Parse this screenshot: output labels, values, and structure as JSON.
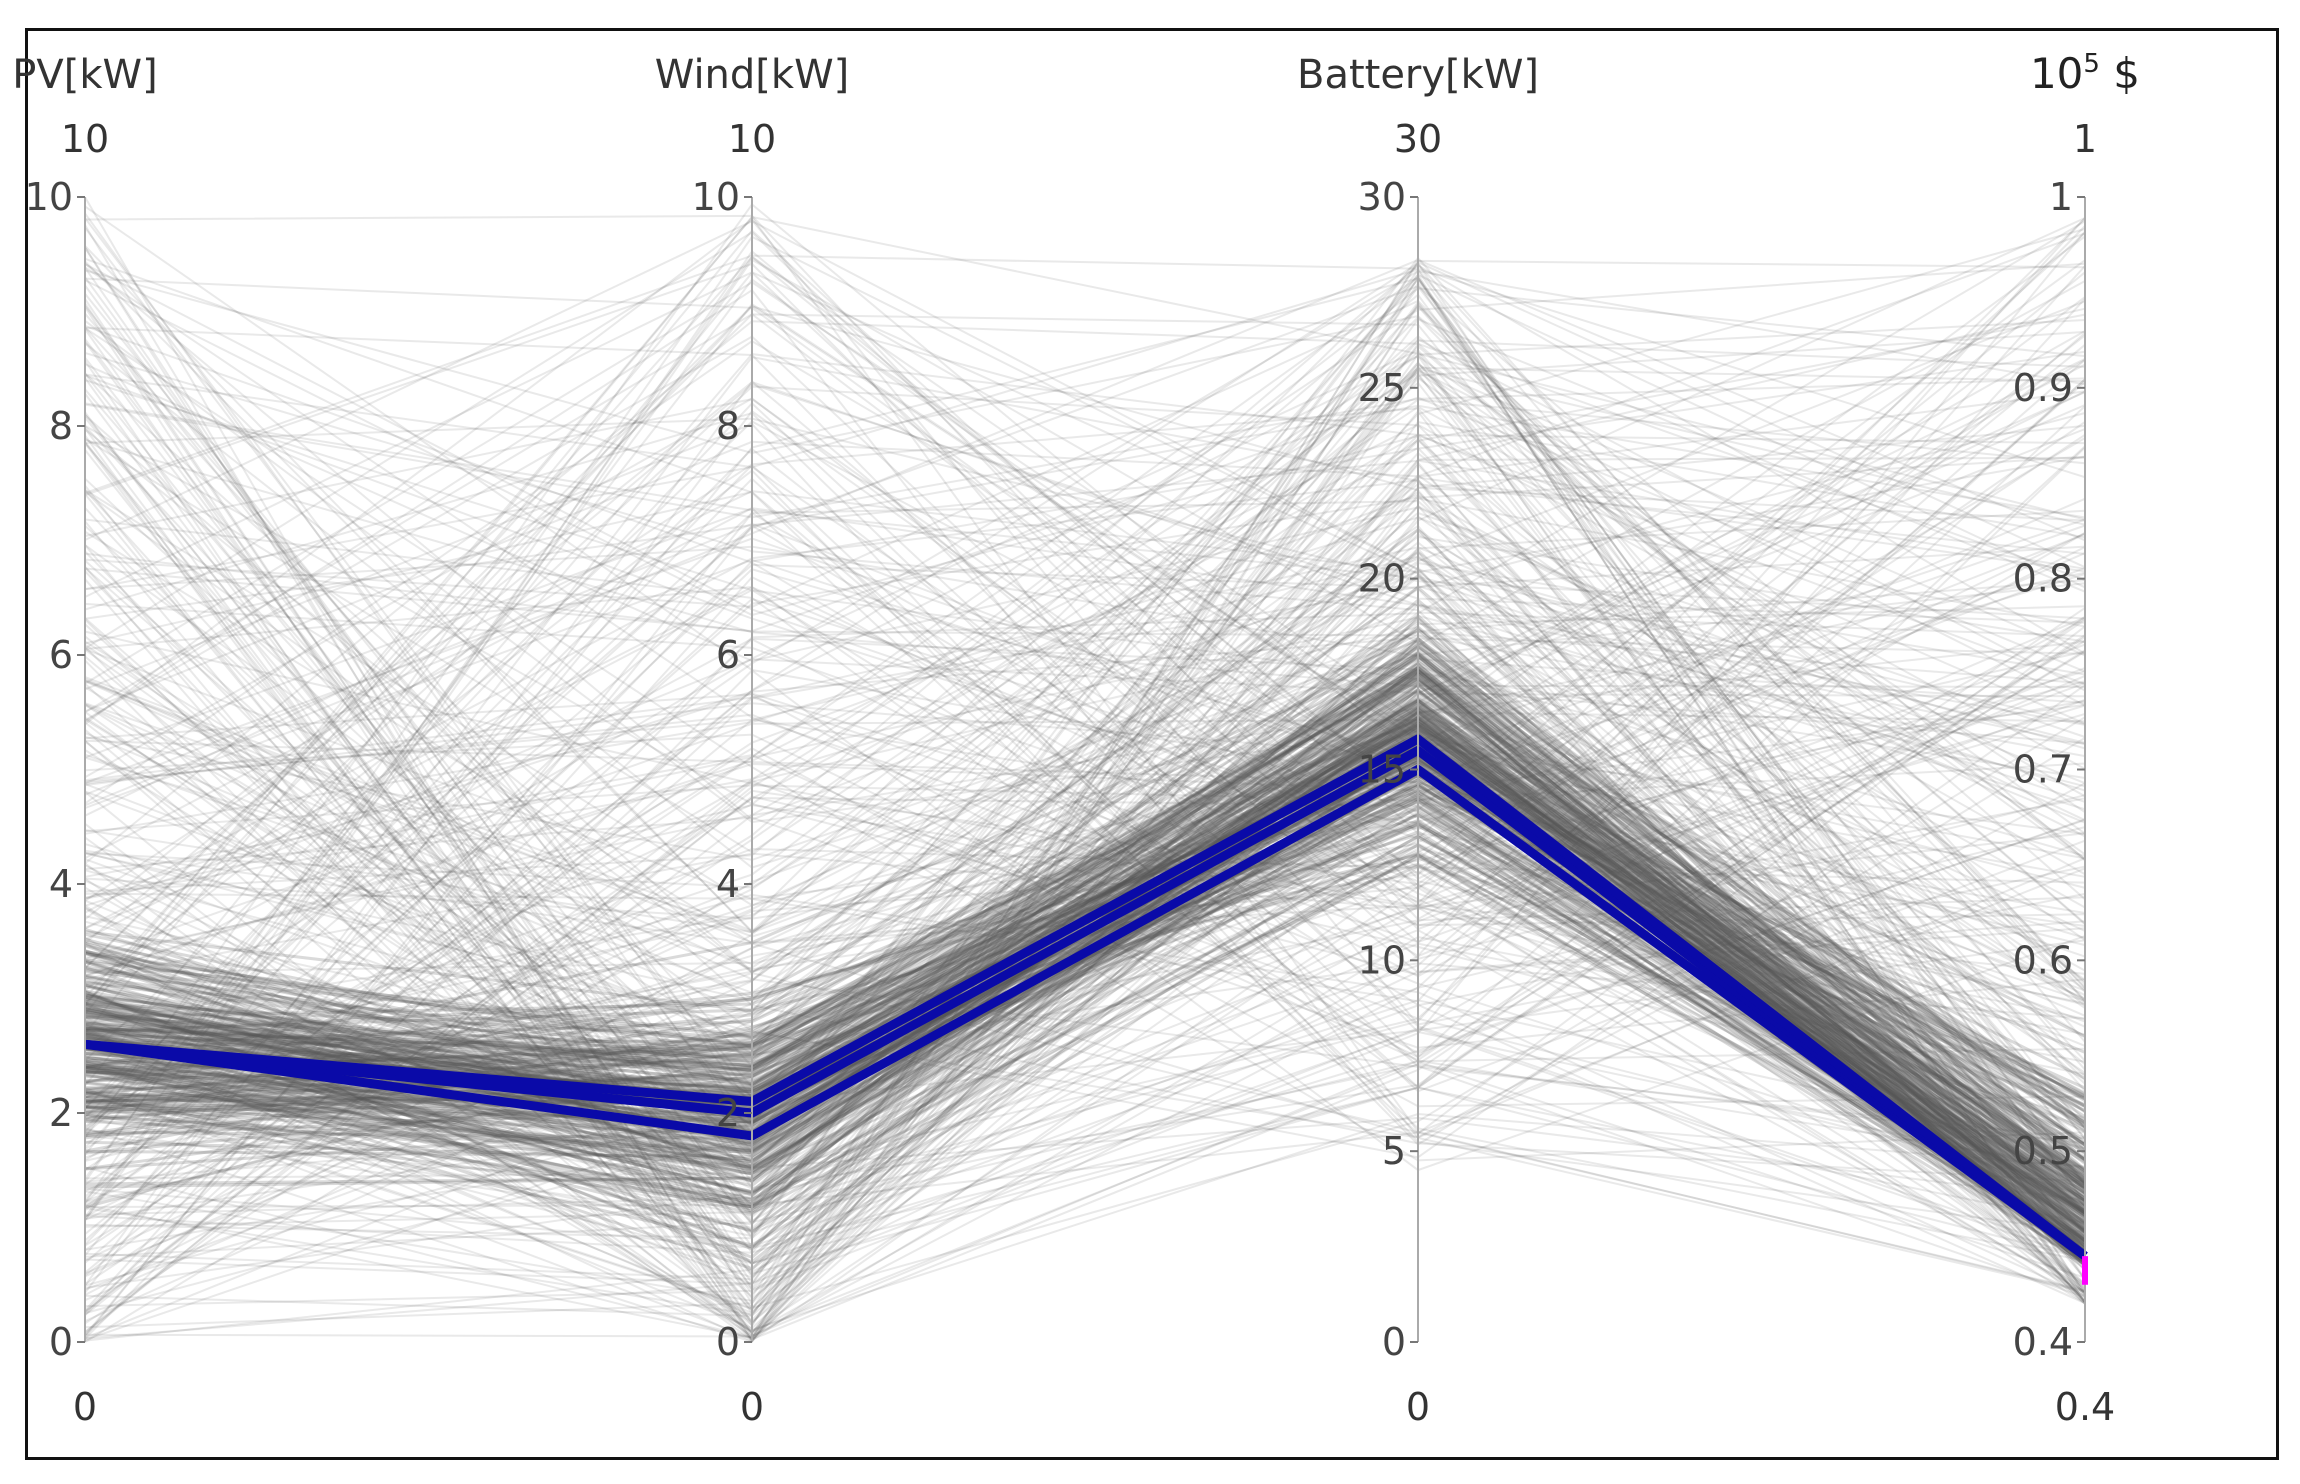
{
  "chart_data": {
    "type": "parallel_coordinates",
    "colors": {
      "background_lines": "#555555",
      "highlight": "#0a0aa8",
      "highlight_marker": "#ff00ff",
      "axis": "#aaaaaa"
    },
    "axes": [
      {
        "key": "pv",
        "title": "PV[kW]",
        "range_top_label": "10",
        "range_bottom_label": "0",
        "min": 0,
        "max": 10,
        "ticks": [
          0,
          2,
          4,
          6,
          8,
          10
        ],
        "tick_labels": [
          "0",
          "2",
          "4",
          "6",
          "8",
          "10"
        ]
      },
      {
        "key": "wind",
        "title": "Wind[kW]",
        "range_top_label": "10",
        "range_bottom_label": "0",
        "min": 0,
        "max": 10,
        "ticks": [
          0,
          2,
          4,
          6,
          8,
          10
        ],
        "tick_labels": [
          "0",
          "2",
          "4",
          "6",
          "8",
          "10"
        ]
      },
      {
        "key": "battery",
        "title": "Battery[kW]",
        "range_top_label": "30",
        "range_bottom_label": "0",
        "min": 0,
        "max": 30,
        "ticks": [
          0,
          5,
          10,
          15,
          20,
          25,
          30
        ],
        "tick_labels": [
          "0",
          "5",
          "10",
          "15",
          "20",
          "25",
          "30"
        ]
      },
      {
        "key": "cost",
        "title": "10",
        "title_sup": "5",
        "title_suffix": " $",
        "range_top_label": "1",
        "range_bottom_label": "0.4",
        "min": 0.4,
        "max": 1,
        "ticks": [
          0.4,
          0.5,
          0.6,
          0.7,
          0.8,
          0.9,
          1
        ],
        "tick_labels": [
          "0.4",
          "0.5",
          "0.6",
          "0.7",
          "0.8",
          "0.9",
          "1"
        ]
      }
    ],
    "dense_band": {
      "center": [
        2.6,
        2.0,
        16.0,
        0.44
      ],
      "spread": [
        0.9,
        0.9,
        2.8,
        0.02
      ],
      "count": 220
    },
    "scatter_lines": {
      "count": 360,
      "note": "broad random lines spanning full axis ranges"
    },
    "highlighted_solutions": [
      {
        "values": [
          2.6,
          1.8,
          15.0,
          0.445
        ]
      },
      {
        "values": [
          2.6,
          2.0,
          15.5,
          0.445
        ]
      },
      {
        "values": [
          2.6,
          2.1,
          15.8,
          0.445
        ]
      }
    ],
    "selected_marker": {
      "axis": "cost",
      "from": 0.43,
      "to": 0.445
    }
  }
}
